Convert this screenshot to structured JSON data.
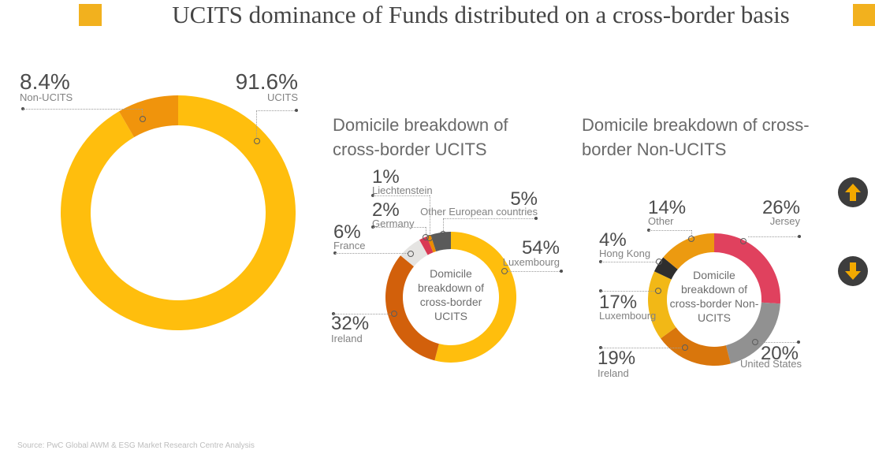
{
  "header": {
    "title": "UCITS dominance of Funds distributed on a cross-border basis",
    "accent_color": "#F2B11E"
  },
  "source": "Source: PwC Global AWM & ESG Market Research Centre Analysis",
  "controls": {
    "up_icon": "up-arrow",
    "down_icon": "down-arrow",
    "button_color": "#3d3d3d",
    "arrow_color": "#F2A900"
  },
  "chart_data": [
    {
      "type": "pie",
      "subtype": "donut",
      "title": "",
      "center_label": "",
      "legend_position": "callout-labels",
      "segments": [
        {
          "label": "UCITS",
          "value": 91.6,
          "display": "91.6%",
          "color": "#FFBE0D"
        },
        {
          "label": "Non-UCITS",
          "value": 8.4,
          "display": "8.4%",
          "color": "#F0940C"
        }
      ]
    },
    {
      "type": "pie",
      "subtype": "donut",
      "title": "Domicile breakdown of cross-border UCITS",
      "center_label": "Domicile breakdown of cross-border UCITS",
      "legend_position": "callout-labels",
      "segments": [
        {
          "label": "Luxembourg",
          "value": 54,
          "display": "54%",
          "color": "#FFBE0D"
        },
        {
          "label": "Ireland",
          "value": 32,
          "display": "32%",
          "color": "#D2600B"
        },
        {
          "label": "France",
          "value": 6,
          "display": "6%",
          "color": "#E5E4E2"
        },
        {
          "label": "Germany",
          "value": 2,
          "display": "2%",
          "color": "#D93954"
        },
        {
          "label": "Liechtenstein",
          "value": 1,
          "display": "1%",
          "color": "#EB8C00"
        },
        {
          "label": "Other European countries",
          "value": 5,
          "display": "5%",
          "color": "#5A5A5A"
        }
      ]
    },
    {
      "type": "pie",
      "subtype": "donut",
      "title": "Domicile breakdown of cross-border Non-UCITS",
      "center_label": "Domicile breakdown of cross-border Non-UCITS",
      "legend_position": "callout-labels",
      "segments": [
        {
          "label": "Jersey",
          "value": 26,
          "display": "26%",
          "color": "#E0415E"
        },
        {
          "label": "United States",
          "value": 20,
          "display": "20%",
          "color": "#919191"
        },
        {
          "label": "Ireland",
          "value": 19,
          "display": "19%",
          "color": "#D9760C"
        },
        {
          "label": "Luxembourg",
          "value": 17,
          "display": "17%",
          "color": "#F2B816"
        },
        {
          "label": "Hong Kong",
          "value": 4,
          "display": "4%",
          "color": "#2E2E2E"
        },
        {
          "label": "Other",
          "value": 14,
          "display": "14%",
          "color": "#EC9A10"
        }
      ]
    }
  ]
}
